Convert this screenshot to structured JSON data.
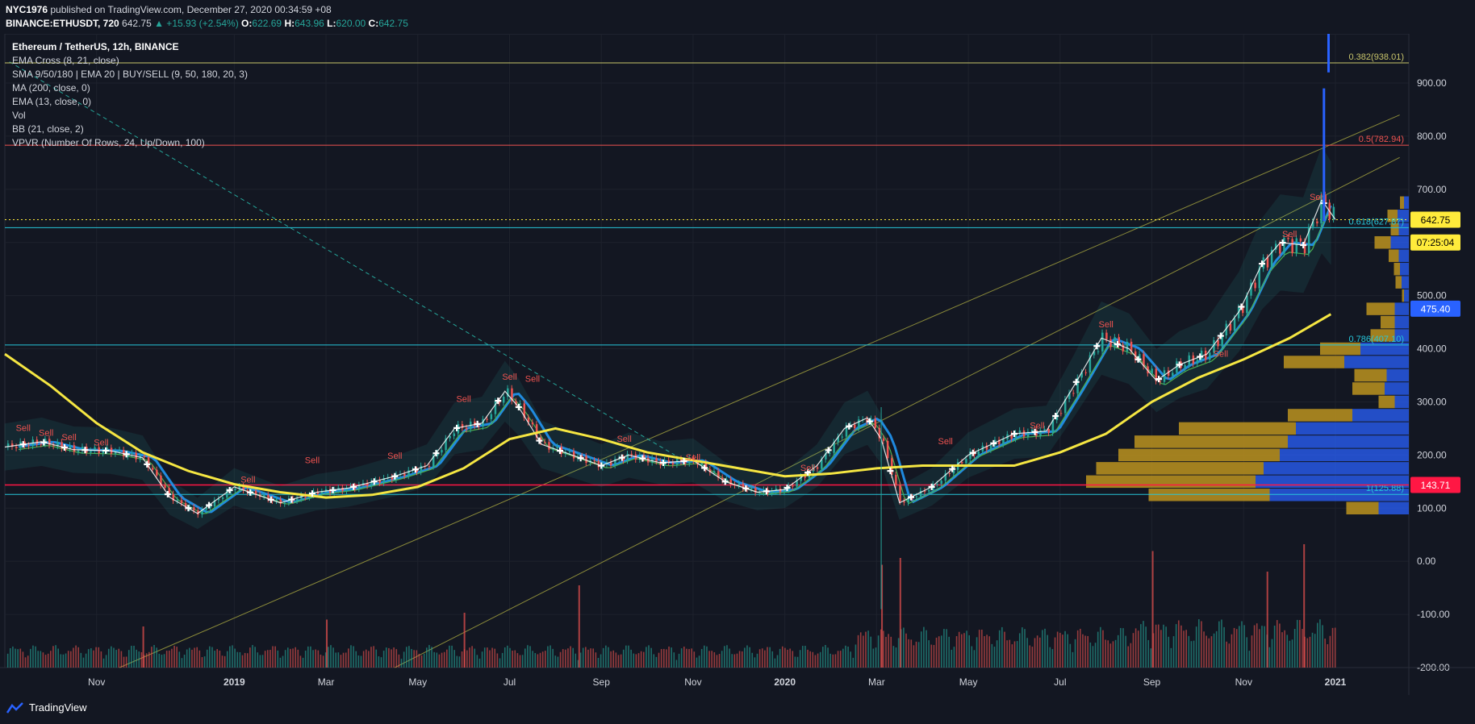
{
  "header": {
    "publisher": "NYC1976",
    "published_text": "published on TradingView.com, December 27, 2020 00:34:59 +08",
    "symbol": "BINANCE:ETHUSDT, 720",
    "last": "642.75",
    "change": "▲ +15.93 (+2.54%)",
    "o_label": "O:",
    "o": "622.69",
    "h_label": "H:",
    "h": "643.96",
    "l_label": "L:",
    "l": "620.00",
    "c_label": "C:",
    "c": "642.75"
  },
  "legend": [
    "Ethereum / TetherUS, 12h, BINANCE",
    "EMA Cross (8, 21, close)",
    "SMA 9/50/180 | EMA 20 | BUY/SELL (9, 50, 180, 20, 3)",
    "MA (200, close, 0)",
    "EMA (13, close, 0)",
    "Vol",
    "BB (21, close, 2)",
    "VPVR (Number Of Rows, 24, Up/Down, 100)"
  ],
  "footer": {
    "brand": "TradingView"
  },
  "colors": {
    "up": "#26a69a",
    "down": "#ef5350",
    "ma200": "#f5e642",
    "fib": "#26c6da",
    "background": "#131722"
  },
  "chart_data": {
    "type": "line",
    "title": "Ethereum / TetherUS, 12h, BINANCE",
    "ylim": [
      -200,
      1000
    ],
    "y_ticks": [
      -200,
      -100,
      0,
      100,
      200,
      300,
      400,
      500,
      600,
      700,
      800,
      900
    ],
    "y_tick_labels": [
      "-200.00",
      "-100.00",
      "0.00",
      "100.00",
      "200.00",
      "300.00",
      "400.00",
      "500.00",
      "600.00",
      "700.00",
      "800.00",
      "900.00"
    ],
    "x_ticks": [
      {
        "m": 2.0,
        "label": "Nov"
      },
      {
        "m": 5.0,
        "label": "2019"
      },
      {
        "m": 7.0,
        "label": "Mar"
      },
      {
        "m": 9.0,
        "label": "May"
      },
      {
        "m": 11.0,
        "label": "Jul"
      },
      {
        "m": 13.0,
        "label": "Sep"
      },
      {
        "m": 15.0,
        "label": "Nov"
      },
      {
        "m": 17.0,
        "label": "2020"
      },
      {
        "m": 19.0,
        "label": "Mar"
      },
      {
        "m": 21.0,
        "label": "May"
      },
      {
        "m": 23.0,
        "label": "Jul"
      },
      {
        "m": 25.0,
        "label": "Sep"
      },
      {
        "m": 27.0,
        "label": "Nov"
      },
      {
        "m": 29.0,
        "label": "2021"
      }
    ],
    "x_range": [
      0,
      30.6
    ],
    "price": {
      "m": [
        0,
        0.8,
        1.5,
        2.3,
        3.0,
        3.6,
        4.2,
        5.0,
        6.0,
        6.8,
        7.5,
        8.5,
        9.2,
        9.8,
        10.4,
        10.9,
        11.2,
        11.7,
        12.2,
        13.0,
        13.6,
        14.3,
        15.0,
        15.7,
        16.4,
        17.0,
        17.7,
        18.3,
        18.8,
        19.1,
        19.5,
        20.2,
        21.0,
        22.0,
        22.7,
        23.3,
        23.9,
        24.5,
        25.1,
        25.6,
        26.2,
        26.9,
        27.4,
        27.8,
        28.3,
        28.7,
        29.0
      ],
      "close": [
        215,
        225,
        210,
        208,
        195,
        120,
        90,
        140,
        110,
        130,
        138,
        160,
        180,
        250,
        260,
        320,
        290,
        220,
        205,
        180,
        200,
        185,
        190,
        150,
        130,
        135,
        180,
        250,
        270,
        230,
        110,
        140,
        200,
        240,
        245,
        330,
        420,
        400,
        340,
        370,
        390,
        470,
        560,
        600,
        595,
        680,
        643
      ]
    },
    "ma200": {
      "m": [
        0,
        1.0,
        2.0,
        3.0,
        4.0,
        5.0,
        6.0,
        7.0,
        8.0,
        9.0,
        10.0,
        11.0,
        12.0,
        13.0,
        14.0,
        15.0,
        16.0,
        17.0,
        18.0,
        19.0,
        20.0,
        21.0,
        22.0,
        23.0,
        24.0,
        25.0,
        26.0,
        27.0,
        28.0,
        28.9
      ],
      "values": [
        390,
        330,
        260,
        205,
        170,
        145,
        130,
        120,
        125,
        140,
        175,
        230,
        250,
        230,
        205,
        190,
        175,
        160,
        165,
        175,
        180,
        180,
        180,
        205,
        240,
        300,
        345,
        380,
        420,
        465
      ]
    },
    "horizontal_levels": [
      {
        "value": 938.01,
        "label": "0.382(938.01)",
        "color": "#c9c56b"
      },
      {
        "value": 782.94,
        "label": "0.5(782.94)",
        "color": "#ef5350"
      },
      {
        "value": 627.87,
        "label": "0.618(627.87)",
        "color": "#26c6da"
      },
      {
        "value": 407.1,
        "label": "0.786(407.10)",
        "color": "#26c6da"
      },
      {
        "value": 125.88,
        "label": "1(125.88)",
        "color": "#26c6da"
      },
      {
        "value": 143.71,
        "label": "",
        "color": "#ff1744"
      }
    ],
    "price_badges": [
      {
        "value": 642.75,
        "label": "642.75",
        "color": "#ffeb3b"
      },
      {
        "value": 600,
        "label": "07:25:04",
        "color": "#ffeb3b"
      },
      {
        "value": 475.4,
        "label": "475.40",
        "color": "#2962ff"
      },
      {
        "value": 143.71,
        "label": "143.71",
        "color": "#ff1744"
      }
    ],
    "sell_signals": [
      {
        "m": 0.4,
        "y": 245
      },
      {
        "m": 0.9,
        "y": 236
      },
      {
        "m": 1.4,
        "y": 228
      },
      {
        "m": 2.1,
        "y": 218
      },
      {
        "m": 5.3,
        "y": 148
      },
      {
        "m": 6.7,
        "y": 185
      },
      {
        "m": 8.5,
        "y": 193
      },
      {
        "m": 10.0,
        "y": 300
      },
      {
        "m": 11.0,
        "y": 342
      },
      {
        "m": 11.5,
        "y": 338
      },
      {
        "m": 13.5,
        "y": 225
      },
      {
        "m": 15.0,
        "y": 190
      },
      {
        "m": 17.5,
        "y": 170
      },
      {
        "m": 20.5,
        "y": 220
      },
      {
        "m": 22.5,
        "y": 250
      },
      {
        "m": 24.0,
        "y": 440
      },
      {
        "m": 26.5,
        "y": 385
      },
      {
        "m": 28.0,
        "y": 610
      },
      {
        "m": 28.6,
        "y": 680
      }
    ],
    "sell_label": "Sell",
    "vpvr": [
      {
        "price": 100,
        "up": 80,
        "down": 75
      },
      {
        "price": 125,
        "up": 300,
        "down": 345
      },
      {
        "price": 150,
        "up": 420,
        "down": 380
      },
      {
        "price": 175,
        "up": 415,
        "down": 360
      },
      {
        "price": 200,
        "up": 400,
        "down": 320
      },
      {
        "price": 225,
        "up": 380,
        "down": 300
      },
      {
        "price": 250,
        "up": 290,
        "down": 280
      },
      {
        "price": 275,
        "up": 160,
        "down": 140
      },
      {
        "price": 300,
        "up": 40,
        "down": 35
      },
      {
        "price": 325,
        "up": 80,
        "down": 60
      },
      {
        "price": 350,
        "up": 80,
        "down": 55
      },
      {
        "price": 375,
        "up": 150,
        "down": 160
      },
      {
        "price": 400,
        "up": 100,
        "down": 120
      },
      {
        "price": 425,
        "up": 60,
        "down": 35
      },
      {
        "price": 450,
        "up": 35,
        "down": 35
      },
      {
        "price": 475,
        "up": 70,
        "down": 35
      },
      {
        "price": 500,
        "up": 5,
        "down": 12
      },
      {
        "price": 525,
        "up": 15,
        "down": 18
      },
      {
        "price": 550,
        "up": 15,
        "down": 22
      },
      {
        "price": 575,
        "up": 25,
        "down": 25
      },
      {
        "price": 600,
        "up": 40,
        "down": 45
      },
      {
        "price": 625,
        "up": 20,
        "down": 25
      },
      {
        "price": 650,
        "up": 25,
        "down": 28
      },
      {
        "price": 675,
        "up": 10,
        "down": 12
      }
    ],
    "volume_spikes": [
      {
        "m": 3.0,
        "v": 60
      },
      {
        "m": 7.0,
        "v": 70
      },
      {
        "m": 10.0,
        "v": 80
      },
      {
        "m": 12.5,
        "v": 120
      },
      {
        "m": 19.1,
        "v": 150
      },
      {
        "m": 19.5,
        "v": 160
      },
      {
        "m": 25.0,
        "v": 170
      },
      {
        "m": 27.5,
        "v": 140
      },
      {
        "m": 28.3,
        "v": 180
      }
    ],
    "last_price": 642.75
  }
}
